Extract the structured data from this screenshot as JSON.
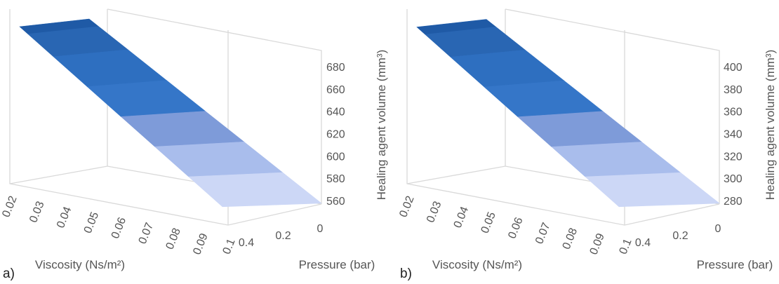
{
  "panels": {
    "a": {
      "label": "a)"
    },
    "b": {
      "label": "b)"
    }
  },
  "chart_data": [
    {
      "type": "surface",
      "panel": "a)",
      "xlabel": "Viscosity (Ns/m²)",
      "ylabel": "Pressure (bar)",
      "zlabel": "Healing agent volume (mm³)",
      "x_ticks": [
        "0.02",
        "0.03",
        "0.04",
        "0.05",
        "0.06",
        "0.07",
        "0.08",
        "0.09",
        "0.1"
      ],
      "y_ticks": [
        "0.4",
        "0.2",
        "0"
      ],
      "z_ticks": [
        "560",
        "580",
        "600",
        "620",
        "640",
        "660",
        "680"
      ],
      "zlim": [
        560,
        690
      ],
      "x": [
        0.02,
        0.1
      ],
      "y": [
        0.4,
        0
      ],
      "z": [
        [
          690,
          690
        ],
        [
          562,
          562
        ]
      ],
      "color_bands": [
        "#2966b3",
        "#2e6fc0",
        "#3576c8",
        "#7e9bd9",
        "#a9bdec",
        "#ccd7f6"
      ]
    },
    {
      "type": "surface",
      "panel": "b)",
      "xlabel": "Viscosity (Ns/m²)",
      "ylabel": "Pressure (bar)",
      "zlabel": "Healing agent volume (mm³)",
      "x_ticks": [
        "0.02",
        "0.03",
        "0.04",
        "0.05",
        "0.06",
        "0.07",
        "0.08",
        "0.09",
        "0.1"
      ],
      "y_ticks": [
        "0.4",
        "0.2",
        "0"
      ],
      "z_ticks": [
        "280",
        "300",
        "320",
        "340",
        "360",
        "380",
        "400"
      ],
      "zlim": [
        280,
        410
      ],
      "x": [
        0.02,
        0.1
      ],
      "y": [
        0.4,
        0
      ],
      "z": [
        [
          408,
          408
        ],
        [
          283,
          283
        ]
      ],
      "color_bands": [
        "#2966b3",
        "#2e6fc0",
        "#3576c8",
        "#7e9bd9",
        "#a9bdec",
        "#ccd7f6"
      ]
    }
  ]
}
